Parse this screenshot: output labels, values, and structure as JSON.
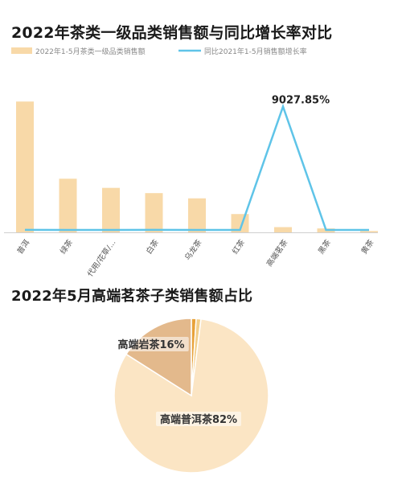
{
  "colors": {
    "bar": "#f8d9a8",
    "line": "#5fc4e8",
    "axis": "#cfcfcf",
    "tick": "#555555",
    "pie_main": "#fbe5c4",
    "pie_second": "#e3b98c",
    "pie_small_1": "#e8a23a",
    "pie_small_2": "#f3cf8b",
    "pie_label_bg": "#ffffff"
  },
  "chart_data": [
    {
      "type": "bar",
      "title": "2022年茶类一级品类销售额与同比增长率对比",
      "categories": [
        "普洱",
        "绿茶",
        "代用/花草/...",
        "白茶",
        "乌龙茶",
        "红茶",
        "高端茗茶",
        "黑茶",
        "黄茶"
      ],
      "series": [
        {
          "name": "2022年1-5月茶类一级品类销售额",
          "type": "bar",
          "values": [
            100,
            41,
            34,
            30,
            26,
            14,
            4,
            3,
            1
          ]
        },
        {
          "name": "同比2021年1-5月销售额增长率",
          "type": "line",
          "values": [
            4.5,
            2.5,
            3.5,
            6.0,
            3.0,
            0.5,
            9027.85,
            0.5,
            0.5
          ]
        }
      ],
      "annotations": [
        {
          "category": "高端茗茶",
          "series": "同比2021年1-5月销售额增长率",
          "text": "9027.85%"
        }
      ],
      "line_ylim": [
        0,
        10000
      ],
      "bar_ylim": [
        0,
        110
      ],
      "legend_position": "top",
      "grid": false
    },
    {
      "type": "pie",
      "title": "2022年5月高端茗茶子类销售额占比",
      "labels": [
        "高端普洱茶",
        "高端岩茶",
        "",
        ""
      ],
      "values": [
        82,
        16,
        1,
        1
      ],
      "slice_labels": [
        "高端普洱茶82%",
        "高端岩茶16%",
        "",
        ""
      ]
    }
  ]
}
